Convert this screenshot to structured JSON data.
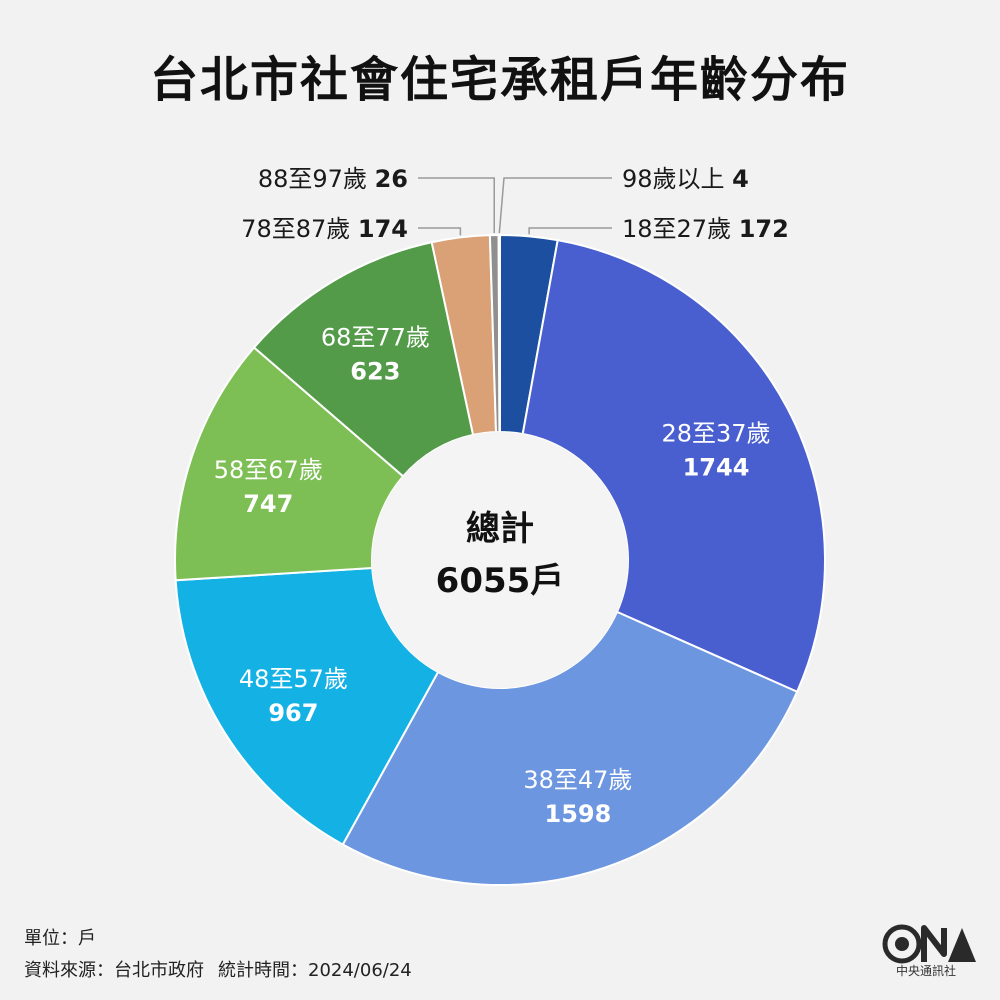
{
  "chart_data": {
    "type": "pie",
    "title": "台北市社會住宅承租戶年齡分布",
    "center_label": "總計",
    "center_value": "6055戶",
    "categories": [
      "18至27歲",
      "28至37歲",
      "38至47歲",
      "48至57歲",
      "58至67歲",
      "68至77歲",
      "78至87歲",
      "88至97歲",
      "98歲以上"
    ],
    "values": [
      172,
      1744,
      1598,
      967,
      747,
      623,
      174,
      26,
      4
    ],
    "colors": [
      "#1d4fa0",
      "#4a5fcf",
      "#6d96e0",
      "#14b1e4",
      "#7dbf55",
      "#539b49",
      "#d9a175",
      "#8f8f8f",
      "#5f5f5f"
    ],
    "inner_labels": [
      false,
      true,
      true,
      true,
      true,
      true,
      false,
      false,
      false
    ],
    "inner_label_color": "#ffffff",
    "donut": true
  },
  "footer": {
    "unit": "單位：戶",
    "source": "資料來源：台北市政府",
    "stat_time": "統計時間：2024/06/24"
  },
  "logo": {
    "name": "cna-logo-icon",
    "text": "中央通訊社"
  }
}
